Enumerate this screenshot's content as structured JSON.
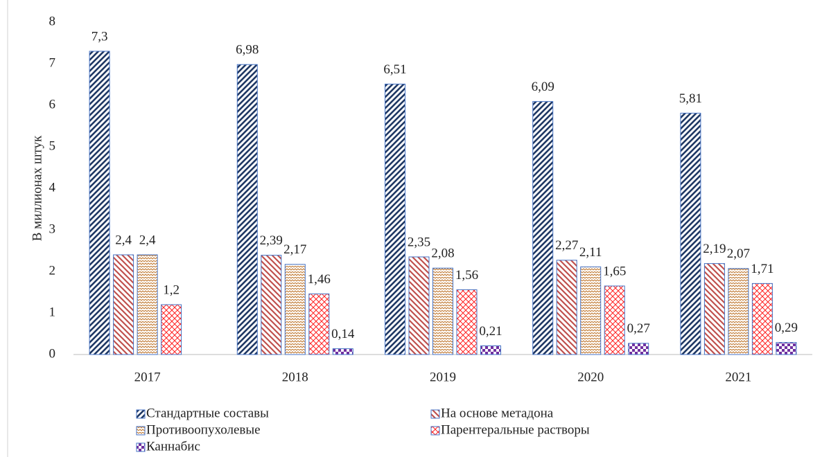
{
  "chart_data": {
    "type": "bar",
    "y_label": "В миллионах штук",
    "categories": [
      "2017",
      "2018",
      "2019",
      "2020",
      "2021"
    ],
    "ylim": [
      0,
      8
    ],
    "yticks": [
      0,
      1,
      2,
      3,
      4,
      5,
      6,
      7,
      8
    ],
    "series": [
      {
        "name": "Стандартные составы",
        "color": "#1f3864",
        "values": [
          7.3,
          6.98,
          6.51,
          6.09,
          5.81
        ],
        "value_labels": [
          "7,3",
          "6,98",
          "6,51",
          "6,09",
          "5,81"
        ]
      },
      {
        "name": "На основе метадона",
        "color": "#c0504d",
        "values": [
          2.4,
          2.39,
          2.35,
          2.27,
          2.19
        ],
        "value_labels": [
          "2,4",
          "2,39",
          "2,35",
          "2,27",
          "2,19"
        ]
      },
      {
        "name": "Противоопухолевые",
        "color": "#c07830",
        "values": [
          2.4,
          2.17,
          2.08,
          2.11,
          2.07
        ],
        "value_labels": [
          "2,4",
          "2,17",
          "2,08",
          "2,11",
          "2,07"
        ]
      },
      {
        "name": "Парентеральные растворы",
        "color": "#ff2020",
        "values": [
          1.2,
          1.46,
          1.56,
          1.65,
          1.71
        ],
        "value_labels": [
          "1,2",
          "1,46",
          "1,56",
          "1,65",
          "1,71"
        ]
      },
      {
        "name": "Каннабис",
        "color": "#7030a0",
        "values": [
          null,
          0.14,
          0.21,
          0.27,
          0.29
        ],
        "value_labels": [
          null,
          "0,14",
          "0,21",
          "0,27",
          "0,29"
        ]
      }
    ]
  }
}
